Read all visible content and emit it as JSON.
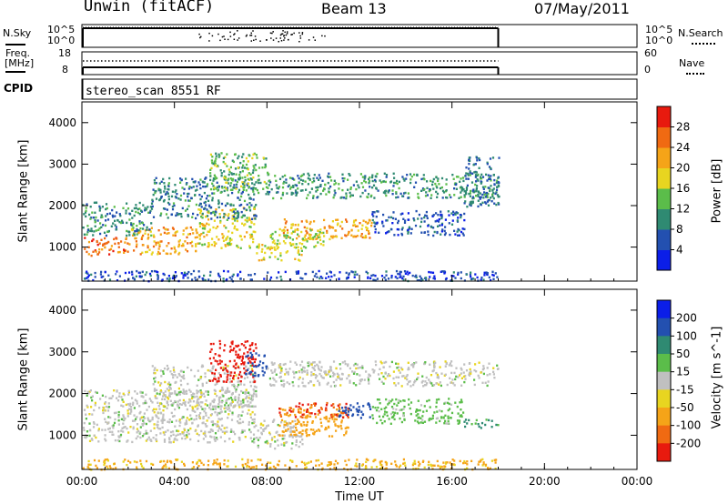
{
  "header": {
    "station": "Unwin (fitACF)",
    "beam": "Beam 13",
    "date": "07/May/2011"
  },
  "nsky_panel": {
    "left_label": "N.Sky",
    "left_ticks": [
      "10^5",
      "10^0"
    ],
    "right_ticks": [
      "10^5",
      "10^0"
    ],
    "right_label": "N.Search",
    "right_style": "dotted"
  },
  "freq_panel": {
    "left_label_line1": "Freq.",
    "left_label_line2": "[MHz]",
    "left_ticks": [
      "18",
      "8"
    ],
    "right_ticks": [
      "60",
      "0"
    ],
    "right_label": "Nave",
    "right_style": "dotted"
  },
  "cpid": {
    "label": "CPID",
    "value": "stereo_scan 8551 RF"
  },
  "xaxis": {
    "label": "Time UT",
    "ticks": [
      "00:00",
      "04:00",
      "08:00",
      "12:00",
      "16:00",
      "20:00",
      "00:00"
    ],
    "range_hours": [
      0,
      24
    ],
    "data_end_hour": 18
  },
  "chart_data": [
    {
      "type": "heatmap",
      "panel": "power",
      "title": "",
      "xlabel": "Time UT",
      "ylabel": "Slant Range [km]",
      "yticks": [
        "1000",
        "2000",
        "3000",
        "4000"
      ],
      "ylim": [
        180,
        4500
      ],
      "x_range_hours": [
        0,
        24
      ],
      "colorbar": {
        "label": "Power [dB]",
        "ticks": [
          "4",
          "8",
          "12",
          "16",
          "20",
          "24",
          "28"
        ],
        "range": [
          0,
          32
        ],
        "colors": [
          "#0b1ee8",
          "#2350b0",
          "#2f8a72",
          "#5bbd4a",
          "#e8d520",
          "#f5a418",
          "#f06a12",
          "#e81a0e"
        ]
      },
      "echo_regions": [
        {
          "t": [
            0.0,
            2.0
          ],
          "r": [
            800,
            1250
          ],
          "value": 26
        },
        {
          "t": [
            2.0,
            5.0
          ],
          "r": [
            850,
            1500
          ],
          "value": 22
        },
        {
          "t": [
            5.0,
            7.5
          ],
          "r": [
            1000,
            2000
          ],
          "value": 18
        },
        {
          "t": [
            0.0,
            3.0
          ],
          "r": [
            1300,
            2100
          ],
          "value": 10
        },
        {
          "t": [
            3.0,
            7.5
          ],
          "r": [
            1700,
            2700
          ],
          "value": 9
        },
        {
          "t": [
            5.5,
            8.0
          ],
          "r": [
            2300,
            3300
          ],
          "value": 13
        },
        {
          "t": [
            7.5,
            9.5
          ],
          "r": [
            700,
            1100
          ],
          "value": 18
        },
        {
          "t": [
            8.5,
            12.5
          ],
          "r": [
            1200,
            1700
          ],
          "value": 22
        },
        {
          "t": [
            8.0,
            10.5
          ],
          "r": [
            1000,
            1450
          ],
          "value": 16
        },
        {
          "t": [
            8.0,
            18.0
          ],
          "r": [
            2200,
            2800
          ],
          "value": 11
        },
        {
          "t": [
            12.5,
            16.5
          ],
          "r": [
            1300,
            1900
          ],
          "value": 6
        },
        {
          "t": [
            16.5,
            18.0
          ],
          "r": [
            2000,
            3200
          ],
          "value": 8
        },
        {
          "t": [
            0.0,
            18.0
          ],
          "r": [
            200,
            450
          ],
          "value": 5
        }
      ]
    },
    {
      "type": "heatmap",
      "panel": "velocity",
      "title": "",
      "xlabel": "Time UT",
      "ylabel": "Slant Range [km]",
      "yticks": [
        "1000",
        "2000",
        "3000",
        "4000"
      ],
      "ylim": [
        180,
        4500
      ],
      "x_range_hours": [
        0,
        24
      ],
      "colorbar": {
        "label": "Velocity [m s^-1]",
        "ticks": [
          "200",
          "100",
          "50",
          "15",
          "-15",
          "-50",
          "-100",
          "-200"
        ],
        "range": [
          -250,
          250
        ],
        "colors": [
          "#0b1ee8",
          "#2350b0",
          "#2f8a72",
          "#5bbd4a",
          "#c0c0c0",
          "#e8d520",
          "#f5a418",
          "#f06a12",
          "#e81a0e"
        ]
      },
      "echo_regions": [
        {
          "t": [
            0.0,
            7.5
          ],
          "r": [
            850,
            2100
          ],
          "value": 0
        },
        {
          "t": [
            3.0,
            7.5
          ],
          "r": [
            1700,
            2700
          ],
          "value": 0
        },
        {
          "t": [
            5.5,
            7.5
          ],
          "r": [
            2300,
            3300
          ],
          "value": -220
        },
        {
          "t": [
            7.0,
            8.0
          ],
          "r": [
            2400,
            3000
          ],
          "value": 150
        },
        {
          "t": [
            7.5,
            9.5
          ],
          "r": [
            700,
            1400
          ],
          "value": 0
        },
        {
          "t": [
            8.5,
            11.5
          ],
          "r": [
            1000,
            1700
          ],
          "value": -80
        },
        {
          "t": [
            8.5,
            11.5
          ],
          "r": [
            1450,
            1800
          ],
          "value": -200
        },
        {
          "t": [
            11.0,
            12.5
          ],
          "r": [
            1400,
            1800
          ],
          "value": 120
        },
        {
          "t": [
            12.5,
            16.5
          ],
          "r": [
            1300,
            1900
          ],
          "value": 30
        },
        {
          "t": [
            8.0,
            18.0
          ],
          "r": [
            2200,
            2800
          ],
          "value": 0
        },
        {
          "t": [
            16.5,
            18.0
          ],
          "r": [
            1200,
            1400
          ],
          "value": 60
        },
        {
          "t": [
            0.0,
            18.0
          ],
          "r": [
            200,
            450
          ],
          "value": -60
        }
      ]
    }
  ]
}
